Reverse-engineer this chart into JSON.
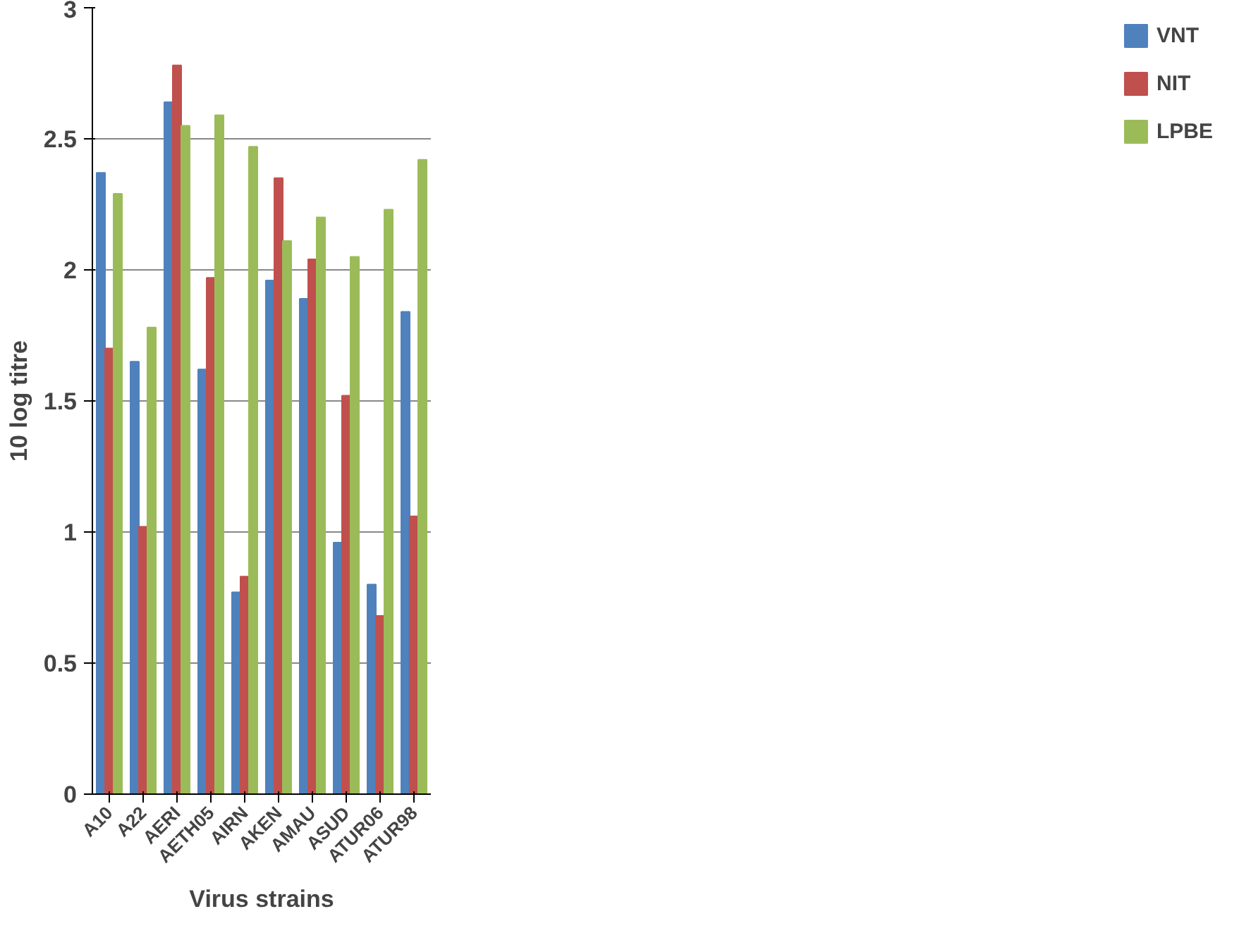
{
  "chart_data": {
    "type": "bar",
    "xlabel": "Virus strains",
    "ylabel": "10 log titre",
    "categories": [
      "A10",
      "A22",
      "AERI",
      "AETH05",
      "AIRN",
      "AKEN",
      "AMAU",
      "ASUD",
      "ATUR06",
      "ATUR98"
    ],
    "series": [
      {
        "name": "VNT",
        "color": "#4f81bd",
        "values": [
          2.37,
          1.65,
          2.64,
          1.62,
          0.77,
          1.96,
          1.89,
          0.96,
          0.8,
          1.84
        ]
      },
      {
        "name": "NIT",
        "color": "#c0504d",
        "values": [
          1.7,
          1.02,
          2.78,
          1.97,
          0.83,
          2.35,
          2.04,
          1.52,
          0.68,
          1.06
        ]
      },
      {
        "name": "LPBE",
        "color": "#9bbb59",
        "values": [
          2.29,
          1.78,
          2.55,
          2.59,
          2.47,
          2.11,
          2.2,
          2.05,
          2.23,
          2.42
        ]
      }
    ],
    "ylim": [
      0,
      3
    ],
    "yticks": [
      0,
      0.5,
      1,
      1.5,
      2,
      2.5,
      3
    ],
    "grid": "y",
    "legend": "right"
  }
}
